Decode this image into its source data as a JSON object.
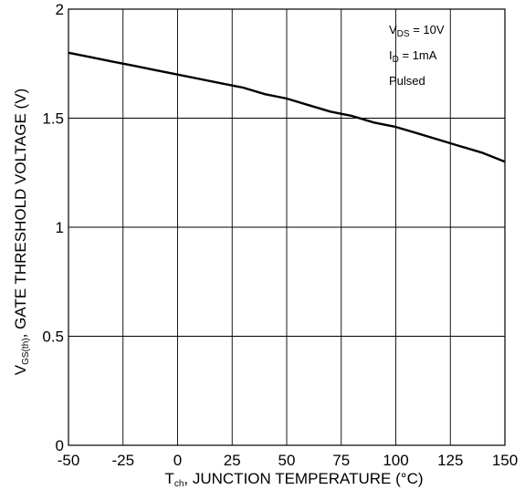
{
  "chart_data": {
    "type": "line",
    "xlabel": {
      "main": "T",
      "sub": "ch",
      "rest": ", JUNCTION TEMPERATURE (°C)"
    },
    "ylabel": {
      "main": "V",
      "sub": "GS(th)",
      "rest": ",  GATE THRESHOLD VOLTAGE (V)"
    },
    "xlim": [
      -50,
      150
    ],
    "ylim": [
      0,
      2
    ],
    "x_ticks": [
      -50,
      -25,
      0,
      25,
      50,
      75,
      100,
      125,
      150
    ],
    "x_tick_labels": [
      "-50",
      "-25",
      "0",
      "25",
      "50",
      "75",
      "100",
      "125",
      "150"
    ],
    "y_ticks": [
      0,
      0.5,
      1,
      1.5,
      2
    ],
    "y_tick_labels": [
      "0",
      "0.5",
      "1",
      "1.5",
      "2"
    ],
    "grid": true,
    "annotations": [
      {
        "main": "V",
        "sub": "DS",
        "rest": " = 10V"
      },
      {
        "main": "I",
        "sub": "D",
        "rest": " = 1mA"
      },
      {
        "main": "Pulsed",
        "sub": "",
        "rest": ""
      }
    ],
    "series": [
      {
        "x": [
          -50,
          -40,
          -30,
          -20,
          -10,
          0,
          10,
          20,
          30,
          40,
          50,
          60,
          70,
          80,
          90,
          100,
          110,
          120,
          130,
          140,
          150
        ],
        "y": [
          1.8,
          1.78,
          1.76,
          1.74,
          1.72,
          1.7,
          1.68,
          1.66,
          1.64,
          1.61,
          1.59,
          1.56,
          1.53,
          1.51,
          1.48,
          1.46,
          1.43,
          1.4,
          1.37,
          1.34,
          1.3
        ]
      }
    ]
  }
}
